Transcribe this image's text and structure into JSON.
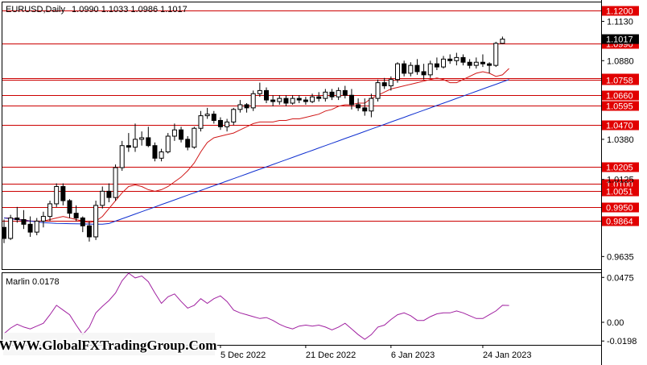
{
  "chart_data": [
    {
      "type": "candlestick",
      "title": "EURUSD,Daily",
      "ohlc_header": "1.0990 1.1033 1.0986 1.1017",
      "ylim": [
        0.956,
        1.124
      ],
      "price_ticks": [
        "1.1130",
        "1.0880",
        "1.0380",
        "1.0125",
        "0.9635"
      ],
      "current_price": "1.1017",
      "level_lines": [
        {
          "value": 1.12,
          "label": "1.1200"
        },
        {
          "value": 1.099,
          "label": "1.0990"
        },
        {
          "value": 1.0767,
          "label": "1.0767"
        },
        {
          "value": 1.0758,
          "label": "1.0758"
        },
        {
          "value": 1.066,
          "label": "1.0660"
        },
        {
          "value": 1.0595,
          "label": "1.0595"
        },
        {
          "value": 1.047,
          "label": "1.0470"
        },
        {
          "value": 1.0205,
          "label": "1.0205"
        },
        {
          "value": 1.01,
          "label": "1.0100"
        },
        {
          "value": 1.0051,
          "label": "1.0051"
        },
        {
          "value": 0.995,
          "label": "0.9950"
        },
        {
          "value": 0.9864,
          "label": "0.9864"
        }
      ],
      "x_labels": [
        {
          "bar": 33,
          "label": "5 Dec 2022"
        },
        {
          "bar": 46,
          "label": "21 Dec 2022"
        },
        {
          "bar": 59,
          "label": "6 Jan 2023"
        },
        {
          "bar": 73,
          "label": "24 Jan 2023"
        }
      ],
      "candles": [
        [
          0.982,
          0.987,
          0.972,
          0.975
        ],
        [
          0.975,
          0.99,
          0.974,
          0.988
        ],
        [
          0.988,
          0.995,
          0.985,
          0.987
        ],
        [
          0.987,
          0.993,
          0.981,
          0.984
        ],
        [
          0.984,
          0.989,
          0.976,
          0.979
        ],
        [
          0.979,
          0.988,
          0.977,
          0.986
        ],
        [
          0.986,
          0.992,
          0.982,
          0.989
        ],
        [
          0.989,
          0.999,
          0.986,
          0.997
        ],
        [
          0.997,
          1.01,
          0.995,
          1.008
        ],
        [
          1.008,
          1.01,
          0.996,
          0.999
        ],
        [
          0.999,
          1.0,
          0.988,
          0.991
        ],
        [
          0.991,
          0.996,
          0.986,
          0.988
        ],
        [
          0.988,
          0.989,
          0.979,
          0.983
        ],
        [
          0.983,
          0.986,
          0.973,
          0.976
        ],
        [
          0.976,
          0.999,
          0.974,
          0.996
        ],
        [
          0.996,
          1.008,
          0.994,
          1.005
        ],
        [
          1.005,
          1.01,
          0.998,
          1.001
        ],
        [
          1.001,
          1.022,
          0.999,
          1.02
        ],
        [
          1.02,
          1.037,
          1.018,
          1.034
        ],
        [
          1.034,
          1.042,
          1.03,
          1.033
        ],
        [
          1.033,
          1.048,
          1.03,
          1.038
        ],
        [
          1.038,
          1.043,
          1.034,
          1.039
        ],
        [
          1.039,
          1.046,
          1.033,
          1.034
        ],
        [
          1.034,
          1.036,
          1.024,
          1.026
        ],
        [
          1.026,
          1.032,
          1.024,
          1.03
        ],
        [
          1.03,
          1.042,
          1.029,
          1.04
        ],
        [
          1.04,
          1.048,
          1.037,
          1.044
        ],
        [
          1.044,
          1.046,
          1.036,
          1.038
        ],
        [
          1.038,
          1.04,
          1.031,
          1.033
        ],
        [
          1.033,
          1.046,
          1.032,
          1.045
        ],
        [
          1.045,
          1.056,
          1.043,
          1.053
        ],
        [
          1.053,
          1.058,
          1.051,
          1.054
        ],
        [
          1.054,
          1.056,
          1.048,
          1.05
        ],
        [
          1.05,
          1.052,
          1.044,
          1.046
        ],
        [
          1.046,
          1.051,
          1.043,
          1.049
        ],
        [
          1.049,
          1.058,
          1.047,
          1.057
        ],
        [
          1.057,
          1.063,
          1.055,
          1.06
        ],
        [
          1.06,
          1.061,
          1.055,
          1.058
        ],
        [
          1.058,
          1.069,
          1.056,
          1.067
        ],
        [
          1.067,
          1.074,
          1.065,
          1.069
        ],
        [
          1.069,
          1.071,
          1.061,
          1.063
        ],
        [
          1.063,
          1.066,
          1.059,
          1.062
        ],
        [
          1.062,
          1.066,
          1.06,
          1.064
        ],
        [
          1.064,
          1.066,
          1.059,
          1.061
        ],
        [
          1.061,
          1.066,
          1.06,
          1.064
        ],
        [
          1.064,
          1.066,
          1.061,
          1.063
        ],
        [
          1.063,
          1.065,
          1.06,
          1.062
        ],
        [
          1.062,
          1.067,
          1.061,
          1.065
        ],
        [
          1.065,
          1.068,
          1.062,
          1.064
        ],
        [
          1.064,
          1.07,
          1.062,
          1.068
        ],
        [
          1.068,
          1.07,
          1.063,
          1.065
        ],
        [
          1.065,
          1.071,
          1.063,
          1.069
        ],
        [
          1.069,
          1.072,
          1.064,
          1.066
        ],
        [
          1.066,
          1.07,
          1.057,
          1.06
        ],
        [
          1.06,
          1.064,
          1.056,
          1.058
        ],
        [
          1.058,
          1.064,
          1.053,
          1.056
        ],
        [
          1.056,
          1.067,
          1.052,
          1.064
        ],
        [
          1.064,
          1.076,
          1.062,
          1.074
        ],
        [
          1.074,
          1.077,
          1.07,
          1.072
        ],
        [
          1.072,
          1.078,
          1.069,
          1.076
        ],
        [
          1.076,
          1.087,
          1.074,
          1.086
        ],
        [
          1.086,
          1.088,
          1.078,
          1.08
        ],
        [
          1.08,
          1.087,
          1.078,
          1.085
        ],
        [
          1.085,
          1.089,
          1.079,
          1.081
        ],
        [
          1.081,
          1.086,
          1.076,
          1.079
        ],
        [
          1.079,
          1.088,
          1.077,
          1.086
        ],
        [
          1.086,
          1.09,
          1.082,
          1.084
        ],
        [
          1.084,
          1.091,
          1.083,
          1.089
        ],
        [
          1.089,
          1.092,
          1.086,
          1.088
        ],
        [
          1.088,
          1.093,
          1.085,
          1.09
        ],
        [
          1.09,
          1.092,
          1.085,
          1.087
        ],
        [
          1.087,
          1.089,
          1.083,
          1.085
        ],
        [
          1.085,
          1.09,
          1.083,
          1.087
        ],
        [
          1.087,
          1.092,
          1.084,
          1.086
        ],
        [
          1.086,
          1.087,
          1.08,
          1.085
        ],
        [
          1.085,
          1.1,
          1.084,
          1.099
        ],
        [
          1.099,
          1.1033,
          1.0986,
          1.1017
        ]
      ],
      "series": [
        {
          "type": "line",
          "color": "#d01818",
          "values": [
            0.988,
            0.988,
            0.987,
            0.987,
            0.986,
            0.986,
            0.986,
            0.987,
            0.988,
            0.989,
            0.988,
            0.987,
            0.986,
            0.985,
            0.986,
            0.989,
            0.994,
            0.999,
            1.004,
            1.008,
            1.009,
            1.008,
            1.006,
            1.005,
            1.006,
            1.008,
            1.011,
            1.014,
            1.018,
            1.023,
            1.03,
            1.036,
            1.039,
            1.04,
            1.041,
            1.042,
            1.044,
            1.046,
            1.048,
            1.049,
            1.049,
            1.049,
            1.05,
            1.05,
            1.051,
            1.051,
            1.052,
            1.053,
            1.054,
            1.056,
            1.057,
            1.059,
            1.06,
            1.06,
            1.061,
            1.061,
            1.064,
            1.066,
            1.068,
            1.07,
            1.071,
            1.072,
            1.073,
            1.074,
            1.075,
            1.076,
            1.077,
            1.076,
            1.074,
            1.074,
            1.076,
            1.078,
            1.08,
            1.081,
            1.08,
            1.078,
            1.079,
            1.083
          ]
        },
        {
          "type": "line",
          "color": "#1030d0",
          "values": [
            0.988,
            0.9875,
            0.987,
            0.9865,
            0.986,
            0.9855,
            0.985,
            0.9848,
            0.9846,
            0.9845,
            0.9844,
            0.9843,
            0.9842,
            0.9841,
            0.984,
            0.984,
            0.9845,
            0.986,
            0.9875,
            0.989,
            0.9905,
            0.992,
            0.9935,
            0.995,
            0.9965,
            0.998,
            0.9995,
            1.001,
            1.0025,
            1.004,
            1.0055,
            1.007,
            1.0085,
            1.01,
            1.0115,
            1.013,
            1.0145,
            1.016,
            1.0175,
            1.019,
            1.0205,
            1.022,
            1.0235,
            1.025,
            1.0265,
            1.028,
            1.0295,
            1.031,
            1.0325,
            1.034,
            1.0355,
            1.037,
            1.0385,
            1.04,
            1.0415,
            1.043,
            1.0445,
            1.046,
            1.0475,
            1.049,
            1.0505,
            1.052,
            1.0535,
            1.055,
            1.0565,
            1.058,
            1.0595,
            1.061,
            1.0625,
            1.064,
            1.0655,
            1.067,
            1.0685,
            1.07,
            1.0715,
            1.073,
            1.0745,
            1.076
          ]
        }
      ]
    },
    {
      "type": "line",
      "title": "Marlin 0.0178",
      "ylim": [
        -0.023,
        0.052
      ],
      "y_ticks": [
        "0.0475",
        "0.00",
        "-0.0198"
      ],
      "series": [
        {
          "color": "#a020a0",
          "values": [
            -0.012,
            -0.006,
            -0.002,
            -0.005,
            -0.007,
            -0.004,
            -0.001,
            0.008,
            0.018,
            0.013,
            0.008,
            -0.003,
            -0.013,
            -0.005,
            0.01,
            0.017,
            0.023,
            0.031,
            0.044,
            0.052,
            0.047,
            0.049,
            0.043,
            0.031,
            0.02,
            0.027,
            0.03,
            0.022,
            0.015,
            0.018,
            0.025,
            0.02,
            0.025,
            0.028,
            0.022,
            0.013,
            0.01,
            0.008,
            0.006,
            0.004,
            0.005,
            0.002,
            -0.002,
            -0.005,
            -0.007,
            -0.004,
            -0.003,
            -0.004,
            -0.003,
            -0.005,
            -0.008,
            -0.005,
            -0.001,
            -0.007,
            -0.013,
            -0.018,
            -0.013,
            -0.005,
            -0.003,
            0.003,
            0.008,
            0.01,
            0.007,
            0.002,
            0.002,
            0.006,
            0.009,
            0.01,
            0.01,
            0.012,
            0.01,
            0.007,
            0.004,
            0.004,
            0.008,
            0.012,
            0.018,
            0.0178
          ]
        }
      ]
    }
  ],
  "watermark": "WWW.GlobalFXTradingGroup.Com"
}
